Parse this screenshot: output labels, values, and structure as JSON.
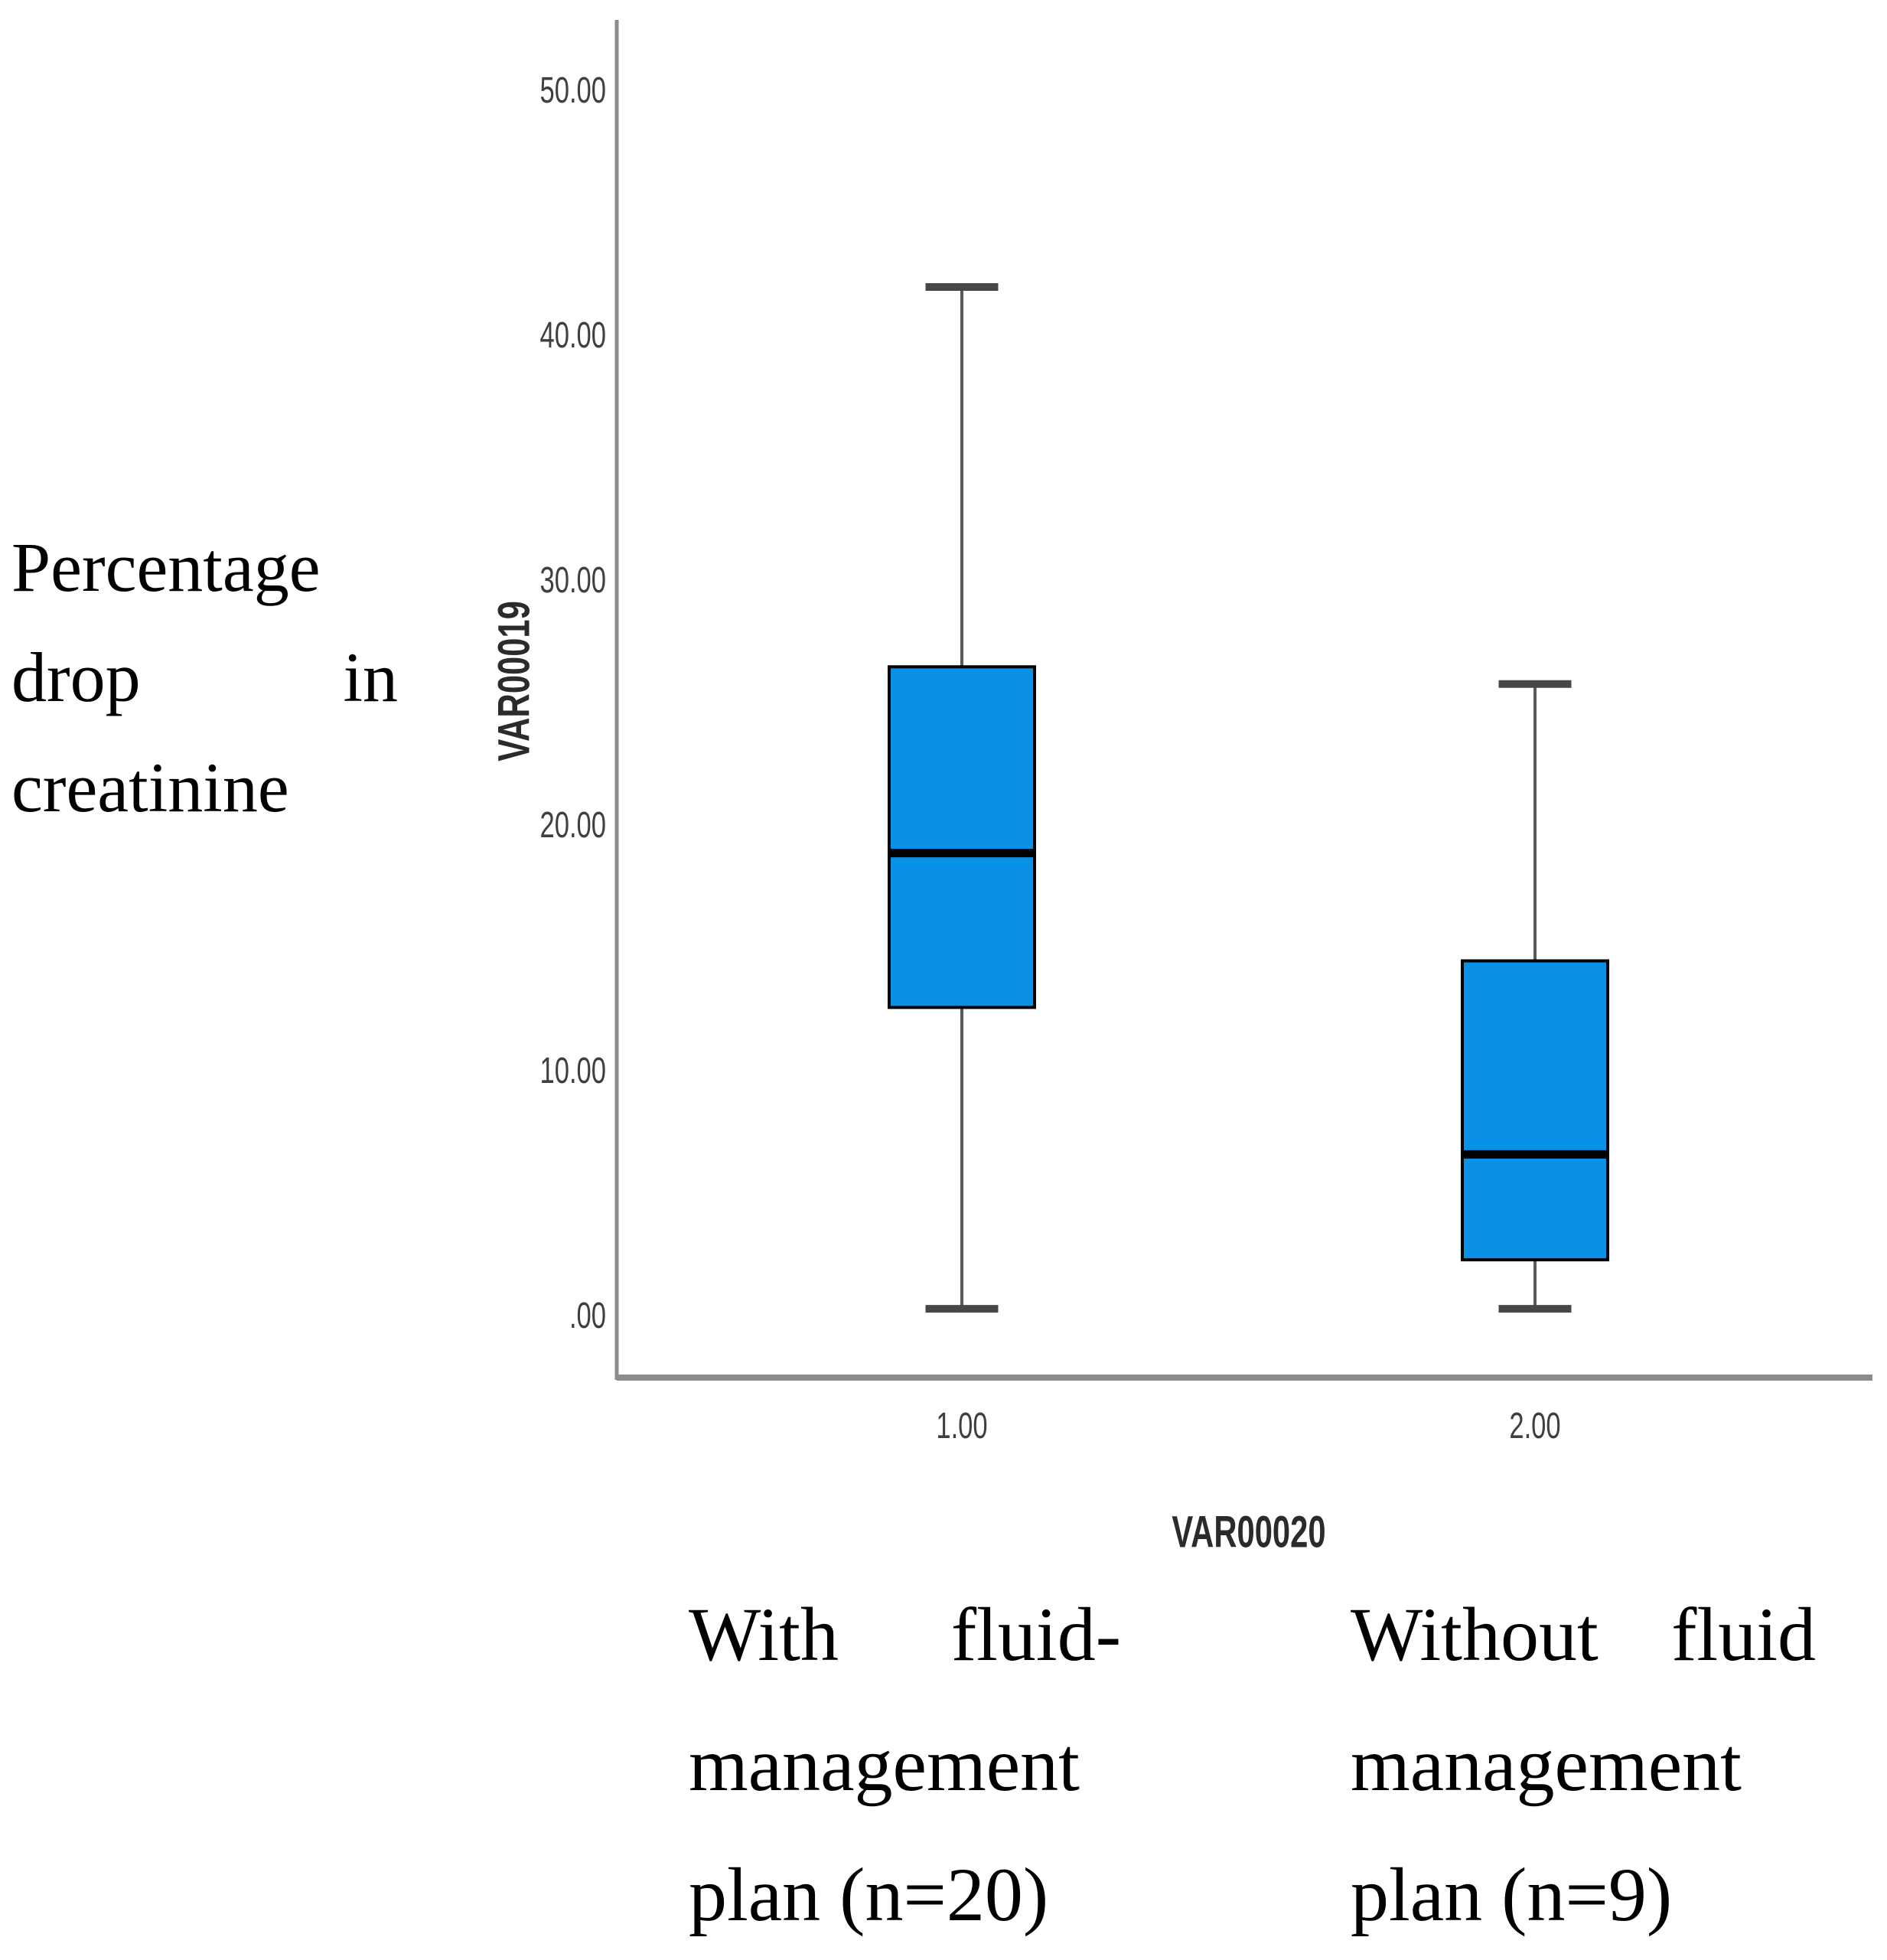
{
  "figure": {
    "background": "#ffffff",
    "left_caption": {
      "line1": "Percentage",
      "line2_left": "drop",
      "line2_right": "in",
      "line3": "creatinine",
      "full_text": "Percentage drop in creatinine"
    }
  },
  "chart_data": {
    "type": "boxplot",
    "title": "",
    "x_axis_label": "VAR00020",
    "y_axis_label": "VAR00019",
    "ylim": [
      -2.6,
      52.9
    ],
    "grid": false,
    "legend": "none",
    "y_ticks": {
      "values": [
        50,
        40,
        30,
        20,
        10,
        0
      ],
      "labels": [
        "50.00",
        "40.00",
        "30.00",
        "20.00",
        "10.00",
        ".00"
      ]
    },
    "categories": [
      {
        "tick": "1.00",
        "label_line1_left": "With",
        "label_line1_right": "fluid-",
        "label_line2": "management",
        "label_line3": "plan (n=20)",
        "full_label": "With fluid-management plan (n=20)"
      },
      {
        "tick": "2.00",
        "label_line1_left": "Without",
        "label_line1_right": "fluid",
        "label_line2": "management",
        "label_line3": "plan (n=9)",
        "full_label": "Without fluid management plan (n=9)"
      }
    ],
    "series": [
      {
        "name": "1.00",
        "group": "With fluid-management plan (n=20)",
        "whisker_low": 0.3,
        "q1": 12.6,
        "median": 18.9,
        "q3": 26.5,
        "whisker_high": 42.0
      },
      {
        "name": "2.00",
        "group": "Without fluid management plan (n=9)",
        "whisker_low": 0.3,
        "q1": 2.3,
        "median": 6.6,
        "q3": 14.5,
        "whisker_high": 25.8
      }
    ],
    "colors": {
      "box_fill": "#0991E8",
      "box_border": "#000000",
      "median": "#000000",
      "whisker": "#5a5a5a",
      "whisker_cap": "#474747",
      "axis_line": "#8c8c8c",
      "tick_text": "#3f3f3f",
      "axis_title_text": "#2b2b2b"
    }
  }
}
